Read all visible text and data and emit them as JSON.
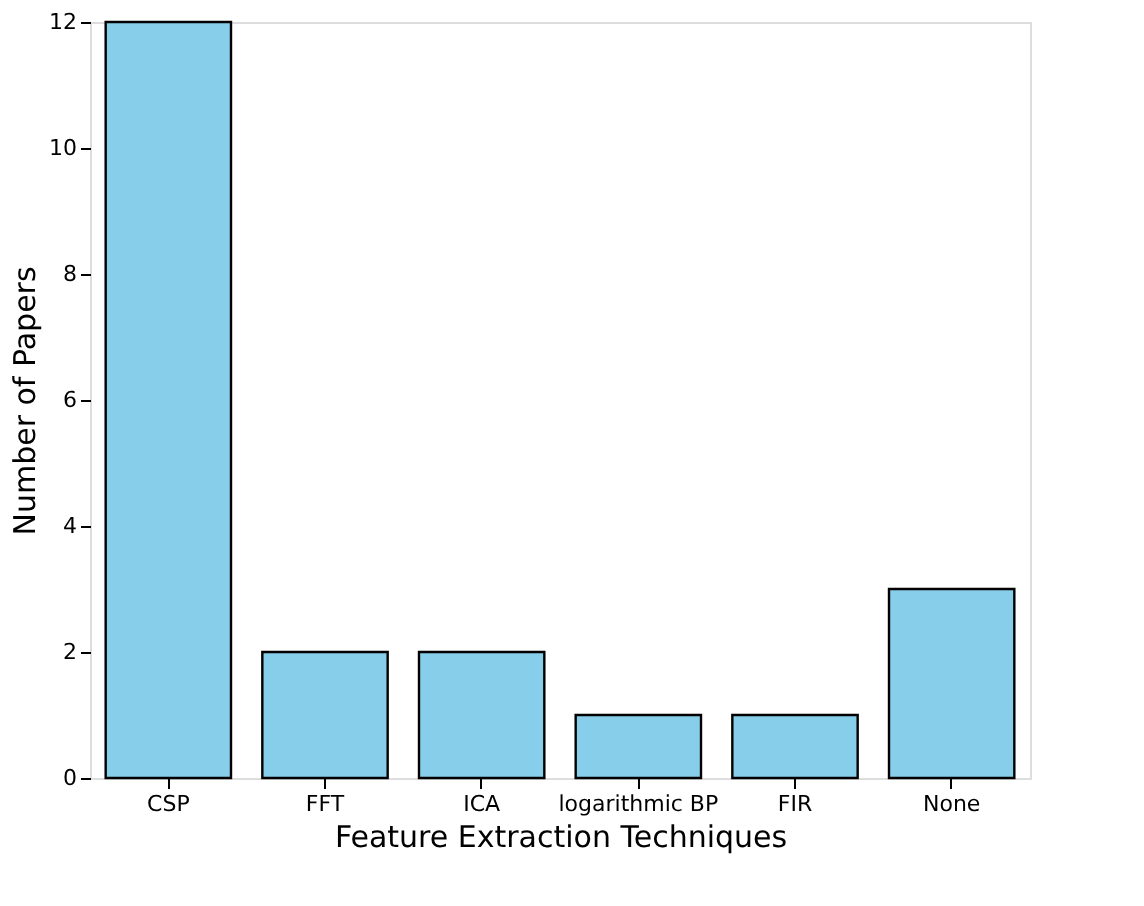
{
  "chart_data": {
    "type": "bar",
    "xlabel": "Feature Extraction Techniques",
    "ylabel": "Number of Papers",
    "categories": [
      "CSP",
      "FFT",
      "ICA",
      "logarithmic BP",
      "FIR",
      "None"
    ],
    "values": [
      12,
      2,
      2,
      1,
      1,
      3
    ],
    "color": "#87ceeb",
    "ylim": [
      0,
      12
    ],
    "yticks": [
      0,
      2,
      4,
      6,
      8,
      10,
      12
    ],
    "grid": false
  }
}
